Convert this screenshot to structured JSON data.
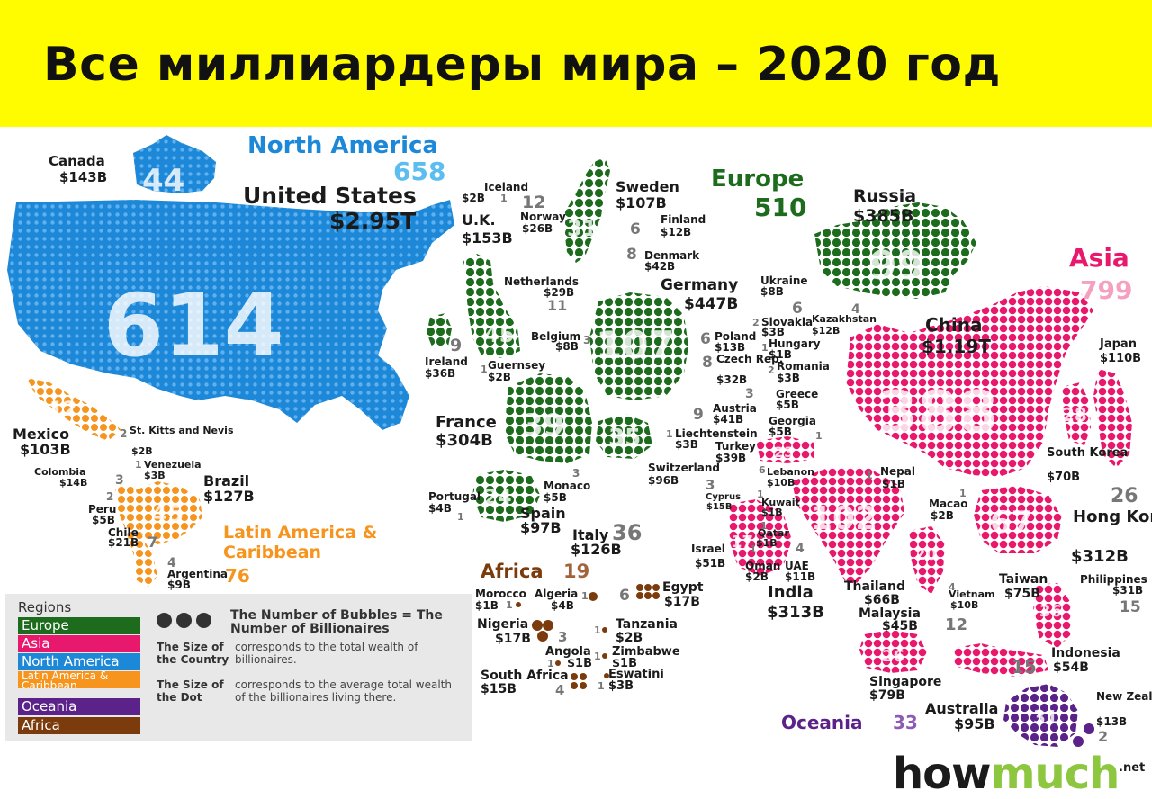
{
  "title": "Все миллиардеры мира – 2020 год",
  "colors": {
    "europe": "#1d6b1d",
    "asia": "#e8196d",
    "north_america": "#1e88d8",
    "latin_america": "#f7941d",
    "oceania": "#5b2289",
    "africa": "#7b3b0c",
    "banner": "#fffc00"
  },
  "regions": [
    {
      "name": "North America",
      "count": "658"
    },
    {
      "name": "Europe",
      "count": "510"
    },
    {
      "name": "Asia",
      "count": "799"
    },
    {
      "name": "Latin America & Caribbean",
      "count": "76"
    },
    {
      "name": "Africa",
      "count": "19"
    },
    {
      "name": "Oceania",
      "count": "33"
    }
  ],
  "countries": {
    "us": {
      "name": "United States",
      "wealth": "$2.95T",
      "count": "614"
    },
    "canada": {
      "name": "Canada",
      "wealth": "$143B",
      "count": "44"
    },
    "mexico": {
      "name": "Mexico",
      "wealth": "$103B",
      "count": "12"
    },
    "stkitts": {
      "name": "St. Kitts and Nevis",
      "wealth": "$2B",
      "count": "2"
    },
    "venezuela": {
      "name": "Venezuela",
      "wealth": "$3B",
      "count": "1"
    },
    "colombia": {
      "name": "Colombia",
      "wealth": "$14B",
      "count": "3"
    },
    "brazil": {
      "name": "Brazil",
      "wealth": "$127B",
      "count": "45"
    },
    "peru": {
      "name": "Peru",
      "wealth": "$5B",
      "count": "2"
    },
    "chile": {
      "name": "Chile",
      "wealth": "$21B",
      "count": "7"
    },
    "argentina": {
      "name": "Argentina",
      "wealth": "$9B",
      "count": "4"
    },
    "iceland": {
      "name": "Iceland",
      "wealth": "$2B",
      "count": "1"
    },
    "norway": {
      "name": "Norway",
      "wealth": "$26B",
      "count": "12"
    },
    "sweden": {
      "name": "Sweden",
      "wealth": "$107B",
      "count": "31"
    },
    "finland": {
      "name": "Finland",
      "wealth": "$12B",
      "count": "6"
    },
    "uk": {
      "name": "U.K.",
      "wealth": "$153B",
      "count": "45"
    },
    "denmark": {
      "name": "Denmark",
      "wealth": "$42B",
      "count": "8"
    },
    "netherlands": {
      "name": "Netherlands",
      "wealth": "$29B",
      "count": "11"
    },
    "germany": {
      "name": "Germany",
      "wealth": "$447B",
      "count": "107"
    },
    "ireland": {
      "name": "Ireland",
      "wealth": "$36B",
      "count": "9"
    },
    "belgium": {
      "name": "Belgium",
      "wealth": "$8B",
      "count": "3"
    },
    "guernsey": {
      "name": "Guernsey",
      "wealth": "$2B",
      "count": "1"
    },
    "poland": {
      "name": "Poland",
      "wealth": "$13B",
      "count": "6"
    },
    "czech": {
      "name": "Czech Rep.",
      "wealth": "$32B",
      "count": "8"
    },
    "ukraine": {
      "name": "Ukraine",
      "wealth": "$8B",
      "count": "6"
    },
    "slovakia": {
      "name": "Slovakia",
      "wealth": "$3B",
      "count": "2"
    },
    "hungary": {
      "name": "Hungary",
      "wealth": "$1B",
      "count": "1"
    },
    "romania": {
      "name": "Romania",
      "wealth": "$3B",
      "count": "2"
    },
    "austria": {
      "name": "Austria",
      "wealth": "$41B",
      "count": "9"
    },
    "greece": {
      "name": "Greece",
      "wealth": "$5B",
      "count": "3"
    },
    "france": {
      "name": "France",
      "wealth": "$304B",
      "count": "39"
    },
    "liechtenstein": {
      "name": "Liechtenstein",
      "wealth": "$3B",
      "count": "1"
    },
    "switzerland": {
      "name": "Switzerland",
      "wealth": "$96B",
      "count": "35"
    },
    "monaco": {
      "name": "Monaco",
      "wealth": "$5B",
      "count": "3"
    },
    "portugal": {
      "name": "Portugal",
      "wealth": "$4B",
      "count": "1"
    },
    "spain": {
      "name": "Spain",
      "wealth": "$97B",
      "count": "24"
    },
    "italy": {
      "name": "Italy",
      "wealth": "$126B",
      "count": "36"
    },
    "russia": {
      "name": "Russia",
      "wealth": "$385B",
      "count": "99"
    },
    "kazakhstan": {
      "name": "Kazakhstan",
      "wealth": "$12B",
      "count": "4"
    },
    "georgia": {
      "name": "Georgia",
      "wealth": "$5B",
      "count": "1"
    },
    "turkey": {
      "name": "Turkey",
      "wealth": "$39B",
      "count": "23"
    },
    "lebanon": {
      "name": "Lebanon",
      "wealth": "$10B",
      "count": "6"
    },
    "cyprus": {
      "name": "Cyprus",
      "wealth": "$15B",
      "count": "3"
    },
    "kuwait": {
      "name": "Kuwait",
      "wealth": "$1B",
      "count": "1"
    },
    "qatar": {
      "name": "Qatar",
      "wealth": "$1B",
      "count": "1"
    },
    "israel": {
      "name": "Israel",
      "wealth": "$51B",
      "count": "17"
    },
    "oman": {
      "name": "Oman",
      "wealth": "$2B",
      "count": "1"
    },
    "uae": {
      "name": "UAE",
      "wealth": "$11B",
      "count": "4"
    },
    "china": {
      "name": "China",
      "wealth": "$1.19T",
      "count": "388"
    },
    "japan": {
      "name": "Japan",
      "wealth": "$110B",
      "count": "28"
    },
    "nepal": {
      "name": "Nepal",
      "wealth": "$1B",
      "count": "1"
    },
    "south_korea": {
      "name": "South Korea",
      "wealth": "$70B",
      "count": "26"
    },
    "india": {
      "name": "India",
      "wealth": "$313B",
      "count": "102"
    },
    "macao": {
      "name": "Macao",
      "wealth": "$2B",
      "count": "1"
    },
    "hong_kong": {
      "name": "Hong Kong",
      "wealth": "$312B",
      "count": "67"
    },
    "thailand": {
      "name": "Thailand",
      "wealth": "$66B",
      "count": "20"
    },
    "vietnam": {
      "name": "Vietnam",
      "wealth": "$10B",
      "count": "4"
    },
    "taiwan": {
      "name": "Taiwan",
      "wealth": "$75B",
      "count": "36"
    },
    "philippines": {
      "name": "Philippines",
      "wealth": "$31B",
      "count": "15"
    },
    "malaysia": {
      "name": "Malaysia",
      "wealth": "$45B",
      "count": "12"
    },
    "singapore": {
      "name": "Singapore",
      "wealth": "$79B",
      "count": "26"
    },
    "indonesia": {
      "name": "Indonesia",
      "wealth": "$54B",
      "count": "15"
    },
    "australia": {
      "name": "Australia",
      "wealth": "$95B",
      "count": "31"
    },
    "new_zealand": {
      "name": "New Zealand",
      "wealth": "$13B",
      "count": "2"
    },
    "morocco": {
      "name": "Morocco",
      "wealth": "$1B",
      "count": "1"
    },
    "algeria": {
      "name": "Algeria",
      "wealth": "$4B",
      "count": "1"
    },
    "egypt": {
      "name": "Egypt",
      "wealth": "$17B",
      "count": "6"
    },
    "nigeria": {
      "name": "Nigeria",
      "wealth": "$17B",
      "count": "3"
    },
    "tanzania": {
      "name": "Tanzania",
      "wealth": "$2B",
      "count": "1"
    },
    "angola": {
      "name": "Angola",
      "wealth": "$1B",
      "count": "1"
    },
    "zimbabwe": {
      "name": "Zimbabwe",
      "wealth": "$1B",
      "count": "1"
    },
    "south_africa": {
      "name": "South Africa",
      "wealth": "$15B",
      "count": "4"
    },
    "eswatini": {
      "name": "Eswatini",
      "wealth": "$3B",
      "count": "1"
    }
  },
  "legend": {
    "title": "Regions",
    "items": [
      "Europe",
      "Asia",
      "North America",
      "Latin America & Caribbean",
      "Oceania",
      "Africa"
    ],
    "bubbles_note": "The Number of Bubbles = The Number of Billionaires",
    "size_country_head": "The Size of the Country",
    "size_country_text": "corresponds to the total wealth of billionaires.",
    "size_dot_head": "The Size of the Dot",
    "size_dot_text": "corresponds to the average total wealth of the billionaires living there."
  },
  "brand": {
    "how": "how",
    "much": "much",
    "net": ".net"
  }
}
